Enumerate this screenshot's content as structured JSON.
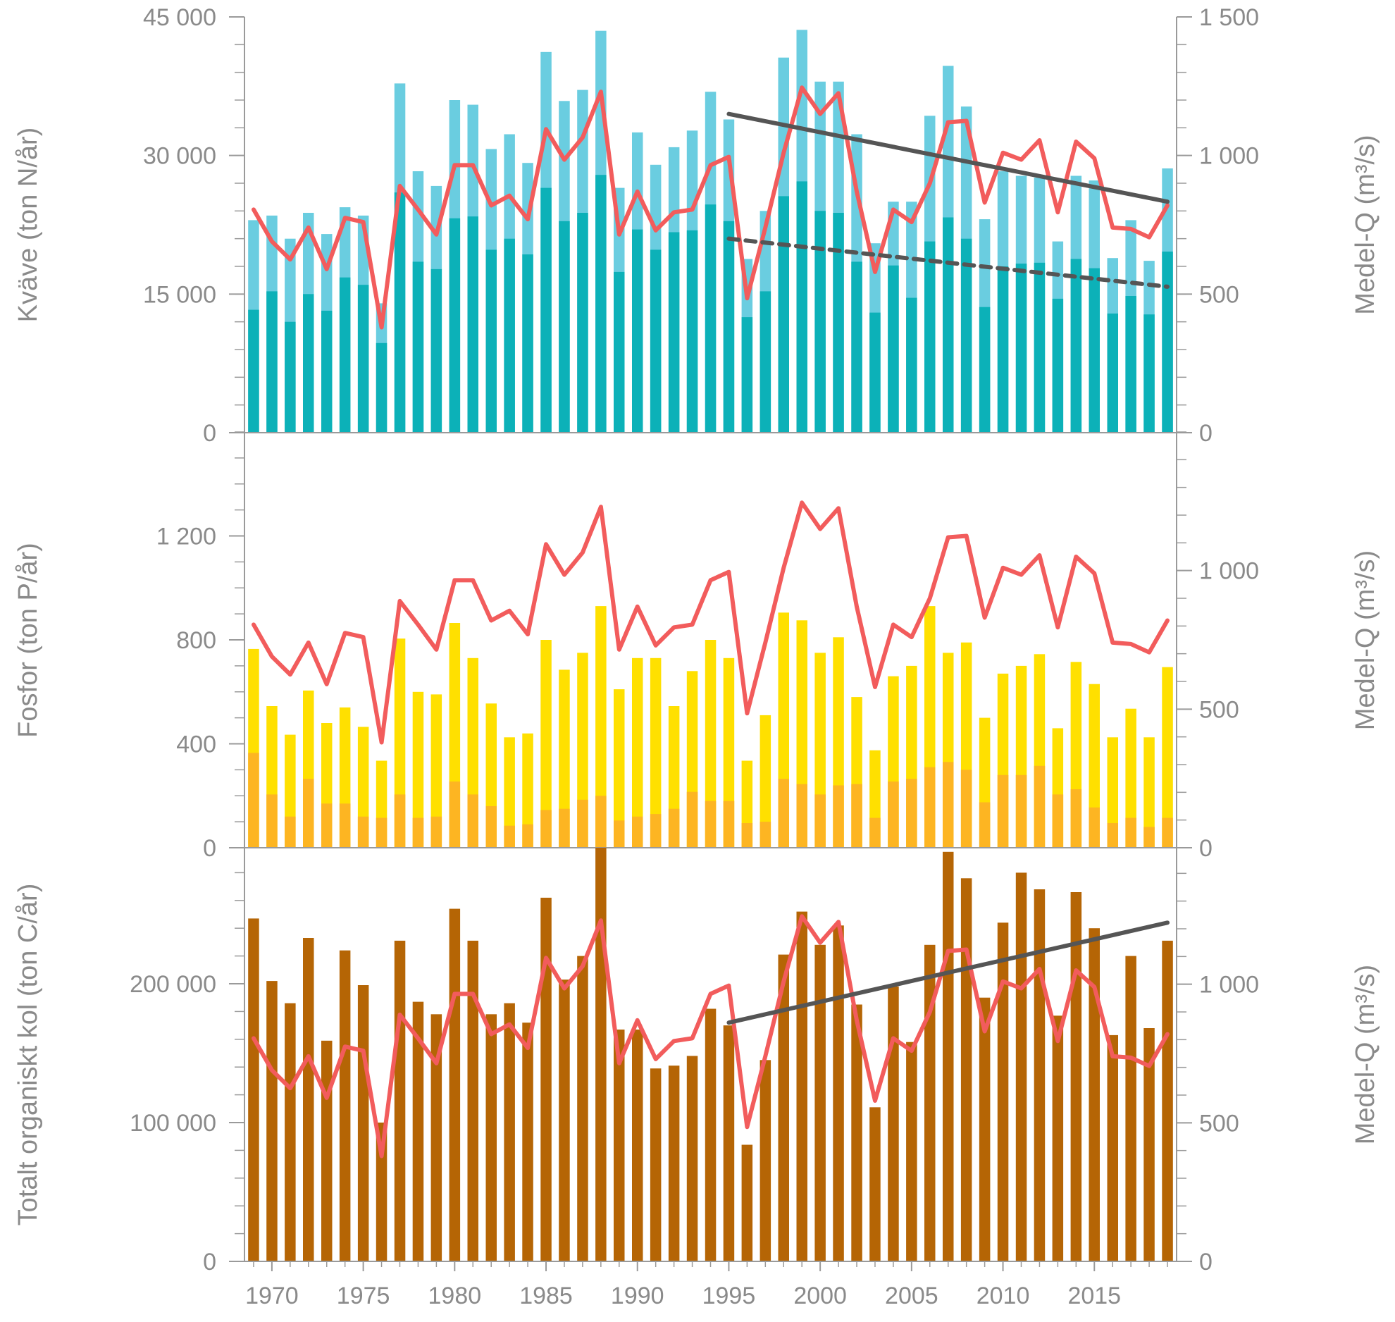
{
  "chart_data": [
    {
      "type": "bar",
      "panel": "nitrogen",
      "ylabel": "Kväve (ton N/år)",
      "y2label": "Medel-Q (m³/s)",
      "ylim": [
        0,
        45000
      ],
      "y2lim": [
        0,
        1500
      ],
      "yticks": [
        {
          "value": 0,
          "label": "0"
        },
        {
          "value": 15000,
          "label": "15 000"
        },
        {
          "value": 30000,
          "label": "30 000"
        },
        {
          "value": 45000,
          "label": "45 000"
        }
      ],
      "y2ticks": [
        {
          "value": 0,
          "label": "0"
        },
        {
          "value": 500,
          "label": "500"
        },
        {
          "value": 1000,
          "label": "1 000"
        },
        {
          "value": 1500,
          "label": "1 500"
        }
      ],
      "x": [
        1969,
        1970,
        1971,
        1972,
        1973,
        1974,
        1975,
        1976,
        1977,
        1978,
        1979,
        1980,
        1981,
        1982,
        1983,
        1984,
        1985,
        1986,
        1987,
        1988,
        1989,
        1990,
        1991,
        1992,
        1993,
        1994,
        1995,
        1996,
        1997,
        1998,
        1999,
        2000,
        2001,
        2002,
        2003,
        2004,
        2005,
        2006,
        2007,
        2008,
        2009,
        2010,
        2011,
        2012,
        2013,
        2014,
        2015,
        2016,
        2017,
        2018,
        2019
      ],
      "series": [
        {
          "role": "bar-total",
          "color": "#6acde0",
          "values": [
            23000,
            23500,
            21000,
            23800,
            21500,
            24400,
            23500,
            14000,
            37800,
            28300,
            26700,
            36000,
            35500,
            30700,
            32300,
            29200,
            41200,
            35900,
            37100,
            43500,
            26500,
            32500,
            29000,
            30900,
            32700,
            36900,
            33900,
            18800,
            24000,
            40600,
            43600,
            38000,
            38000,
            32300,
            20500,
            25000,
            25000,
            34300,
            39700,
            35300,
            23100,
            28300,
            27800,
            27600,
            20700,
            27800,
            27300,
            18900,
            23000,
            18600,
            28600
          ]
        },
        {
          "role": "bar-part",
          "color": "#0cb1b8",
          "values": [
            13300,
            15300,
            12000,
            15000,
            13200,
            16800,
            16000,
            9700,
            26000,
            18500,
            17700,
            23200,
            23400,
            19800,
            21000,
            19300,
            26500,
            22900,
            23800,
            27900,
            17400,
            22000,
            19800,
            21700,
            21900,
            24700,
            22900,
            12500,
            15300,
            25600,
            27200,
            24000,
            23800,
            18500,
            13000,
            18100,
            14600,
            20700,
            23300,
            21000,
            13600,
            18000,
            18300,
            18400,
            14500,
            18800,
            17800,
            12900,
            14800,
            12800,
            19600
          ]
        },
        {
          "role": "line",
          "color": "#f25c5c",
          "axis": "y2",
          "values": [
            805,
            690,
            625,
            740,
            590,
            775,
            760,
            380,
            890,
            805,
            715,
            965,
            965,
            820,
            855,
            770,
            1095,
            985,
            1065,
            1230,
            715,
            870,
            730,
            795,
            805,
            965,
            995,
            485,
            740,
            1010,
            1245,
            1150,
            1225,
            870,
            580,
            805,
            760,
            900,
            1120,
            1125,
            830,
            1010,
            985,
            1055,
            795,
            1050,
            990,
            740,
            735,
            705,
            820
          ]
        }
      ],
      "trend": [
        {
          "style": "solid",
          "color": "#555555",
          "from": [
            1995,
            34500
          ],
          "to": [
            2019,
            25000
          ]
        },
        {
          "style": "dashed",
          "color": "#555555",
          "from": [
            1995,
            21000
          ],
          "to": [
            2019,
            15800
          ]
        }
      ]
    },
    {
      "type": "bar",
      "panel": "phosphorus",
      "ylabel": "Fosfor (ton P/år)",
      "y2label": "Medel-Q (m³/s)",
      "ylim": [
        0,
        1600
      ],
      "y2lim": [
        0,
        1500
      ],
      "yticks": [
        {
          "value": 0,
          "label": "0"
        },
        {
          "value": 400,
          "label": "400"
        },
        {
          "value": 800,
          "label": "800"
        },
        {
          "value": 1200,
          "label": "1 200"
        }
      ],
      "y2ticks": [
        {
          "value": 0,
          "label": "0"
        },
        {
          "value": 500,
          "label": "500"
        },
        {
          "value": 1000,
          "label": "1 000"
        }
      ],
      "x": [
        1969,
        1970,
        1971,
        1972,
        1973,
        1974,
        1975,
        1976,
        1977,
        1978,
        1979,
        1980,
        1981,
        1982,
        1983,
        1984,
        1985,
        1986,
        1987,
        1988,
        1989,
        1990,
        1991,
        1992,
        1993,
        1994,
        1995,
        1996,
        1997,
        1998,
        1999,
        2000,
        2001,
        2002,
        2003,
        2004,
        2005,
        2006,
        2007,
        2008,
        2009,
        2010,
        2011,
        2012,
        2013,
        2014,
        2015,
        2016,
        2017,
        2018,
        2019
      ],
      "series": [
        {
          "role": "bar-total",
          "color": "#ffe000",
          "values": [
            765,
            545,
            435,
            605,
            480,
            540,
            465,
            335,
            805,
            600,
            590,
            865,
            730,
            555,
            425,
            440,
            800,
            685,
            750,
            930,
            610,
            730,
            730,
            545,
            680,
            800,
            730,
            335,
            510,
            905,
            875,
            750,
            810,
            580,
            375,
            660,
            700,
            930,
            750,
            790,
            500,
            670,
            700,
            745,
            460,
            715,
            630,
            425,
            535,
            425,
            695
          ]
        },
        {
          "role": "bar-part",
          "color": "#fdb522",
          "values": [
            365,
            205,
            120,
            265,
            170,
            170,
            120,
            115,
            205,
            115,
            120,
            255,
            205,
            160,
            85,
            90,
            145,
            150,
            185,
            200,
            105,
            120,
            130,
            150,
            215,
            180,
            180,
            95,
            100,
            265,
            245,
            205,
            240,
            245,
            115,
            255,
            265,
            310,
            330,
            300,
            175,
            280,
            280,
            315,
            205,
            225,
            155,
            95,
            115,
            80,
            115
          ]
        },
        {
          "role": "line",
          "color": "#f25c5c",
          "axis": "y2",
          "values": [
            805,
            690,
            625,
            740,
            590,
            775,
            760,
            380,
            890,
            805,
            715,
            965,
            965,
            820,
            855,
            770,
            1095,
            985,
            1065,
            1230,
            715,
            870,
            730,
            795,
            805,
            965,
            995,
            485,
            740,
            1010,
            1245,
            1150,
            1225,
            870,
            580,
            805,
            760,
            900,
            1120,
            1125,
            830,
            1010,
            985,
            1055,
            795,
            1050,
            990,
            740,
            735,
            705,
            820
          ]
        }
      ]
    },
    {
      "type": "bar",
      "panel": "toc",
      "ylabel": "Totalt organiskt kol (ton C/år)",
      "y2label": "Medel-Q (m³/s)",
      "ylim": [
        0,
        300000
      ],
      "y2lim": [
        0,
        1500
      ],
      "yticks": [
        {
          "value": 0,
          "label": "0"
        },
        {
          "value": 100000,
          "label": "100 000"
        },
        {
          "value": 200000,
          "label": "200 000"
        }
      ],
      "y2ticks": [
        {
          "value": 0,
          "label": "0"
        },
        {
          "value": 500,
          "label": "500"
        },
        {
          "value": 1000,
          "label": "1 000"
        }
      ],
      "xticks": [
        {
          "value": 1970,
          "label": "1970"
        },
        {
          "value": 1975,
          "label": "1975"
        },
        {
          "value": 1980,
          "label": "1980"
        },
        {
          "value": 1985,
          "label": "1985"
        },
        {
          "value": 1990,
          "label": "1990"
        },
        {
          "value": 1995,
          "label": "1995"
        },
        {
          "value": 2000,
          "label": "2000"
        },
        {
          "value": 2005,
          "label": "2005"
        },
        {
          "value": 2010,
          "label": "2010"
        },
        {
          "value": 2015,
          "label": "2015"
        }
      ],
      "x": [
        1969,
        1970,
        1971,
        1972,
        1973,
        1974,
        1975,
        1976,
        1977,
        1978,
        1979,
        1980,
        1981,
        1982,
        1983,
        1984,
        1985,
        1986,
        1987,
        1988,
        1989,
        1990,
        1991,
        1992,
        1993,
        1994,
        1995,
        1996,
        1997,
        1998,
        1999,
        2000,
        2001,
        2002,
        2003,
        2004,
        2005,
        2006,
        2007,
        2008,
        2009,
        2010,
        2011,
        2012,
        2013,
        2014,
        2015,
        2016,
        2017,
        2018,
        2019
      ],
      "series": [
        {
          "role": "bar-total",
          "color": "#b56505",
          "values": [
            247000,
            202000,
            186000,
            233000,
            159000,
            224000,
            199000,
            100000,
            231000,
            187000,
            178000,
            254000,
            231000,
            178000,
            186000,
            172000,
            262000,
            203000,
            220000,
            298000,
            167000,
            167000,
            139000,
            141000,
            148000,
            182000,
            170000,
            84000,
            145000,
            221000,
            252000,
            228000,
            242000,
            185000,
            111000,
            198000,
            158000,
            228000,
            295000,
            276000,
            190000,
            244000,
            280000,
            268000,
            177000,
            266000,
            240000,
            163000,
            220000,
            168000,
            231000
          ]
        },
        {
          "role": "line",
          "color": "#f25c5c",
          "axis": "y2",
          "values": [
            805,
            690,
            625,
            740,
            590,
            775,
            760,
            380,
            890,
            805,
            715,
            965,
            965,
            820,
            855,
            770,
            1095,
            985,
            1065,
            1230,
            715,
            870,
            730,
            795,
            805,
            965,
            995,
            485,
            740,
            1010,
            1245,
            1150,
            1225,
            870,
            580,
            805,
            760,
            900,
            1120,
            1125,
            830,
            1010,
            985,
            1055,
            795,
            1050,
            990,
            740,
            735,
            705,
            820
          ]
        }
      ],
      "trend": [
        {
          "style": "solid",
          "color": "#555555",
          "from": [
            1995,
            172000
          ],
          "to": [
            2019,
            244000
          ]
        }
      ]
    }
  ]
}
